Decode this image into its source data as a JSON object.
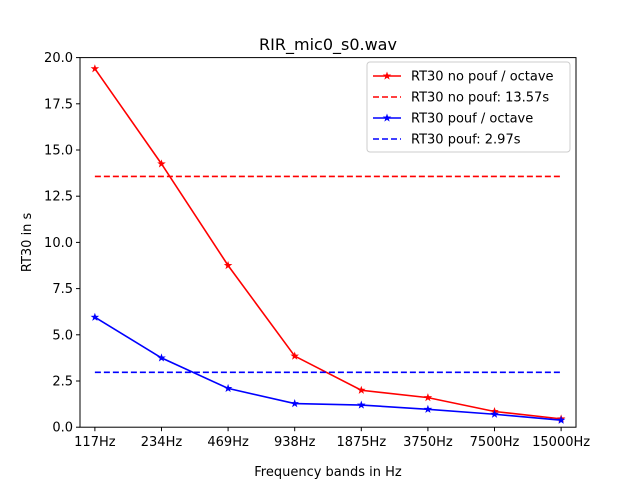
{
  "chart_data": {
    "type": "line",
    "title": "RIR_mic0_s0.wav",
    "xlabel": "Frequency bands in Hz",
    "ylabel": "RT30 in s",
    "categories": [
      "117Hz",
      "234Hz",
      "469Hz",
      "938Hz",
      "1875Hz",
      "3750Hz",
      "7500Hz",
      "15000Hz"
    ],
    "ylim": [
      0,
      20
    ],
    "yticks": [
      "0.0",
      "2.5",
      "5.0",
      "7.5",
      "10.0",
      "12.5",
      "15.0",
      "17.5",
      "20.0"
    ],
    "grid": false,
    "legend_position": "top-right",
    "series": [
      {
        "name": "RT30 no pouf / octave",
        "style": "line-star",
        "color": "#ff0000",
        "values": [
          19.4,
          14.25,
          8.75,
          3.85,
          2.0,
          1.6,
          0.85,
          0.45
        ]
      },
      {
        "name": "RT30 no pouf: 13.57s",
        "style": "dashed",
        "color": "#ff0000",
        "value": 13.57
      },
      {
        "name": "RT30 pouf  / octave",
        "style": "line-star",
        "color": "#0000ff",
        "values": [
          5.95,
          3.75,
          2.1,
          1.28,
          1.2,
          0.97,
          0.7,
          0.38
        ]
      },
      {
        "name": "RT30 pouf: 2.97s",
        "style": "dashed",
        "color": "#0000ff",
        "value": 2.97
      }
    ]
  }
}
